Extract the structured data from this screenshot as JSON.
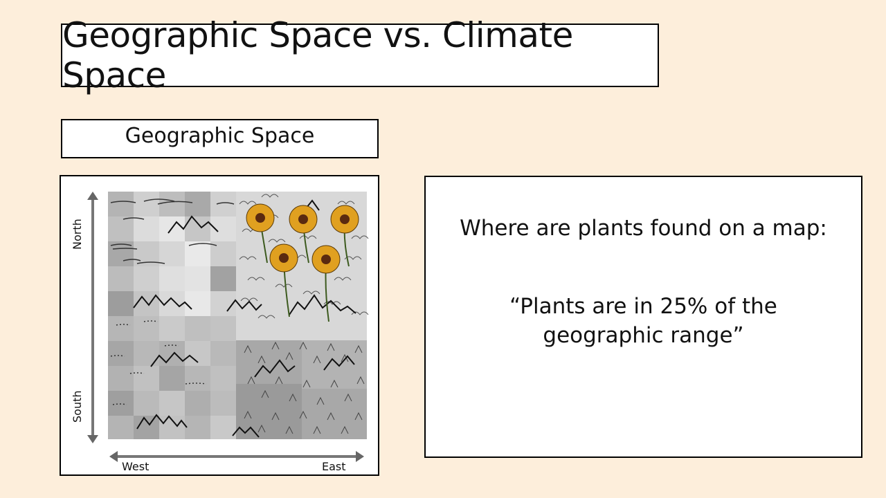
{
  "slide": {
    "title": "Geographic Space vs. Climate Space",
    "subtitle": "Geographic Space",
    "map": {
      "north_label": "North",
      "south_label": "South",
      "west_label": "West",
      "east_label": "East"
    },
    "text": {
      "line1": "Where are plants found on a map:",
      "quote": "“Plants are in 25% of the geographic range”"
    }
  },
  "colors": {
    "background": "#fdeedb",
    "sunflower": "#e0a020",
    "sunflower_center": "#5a2a10"
  }
}
